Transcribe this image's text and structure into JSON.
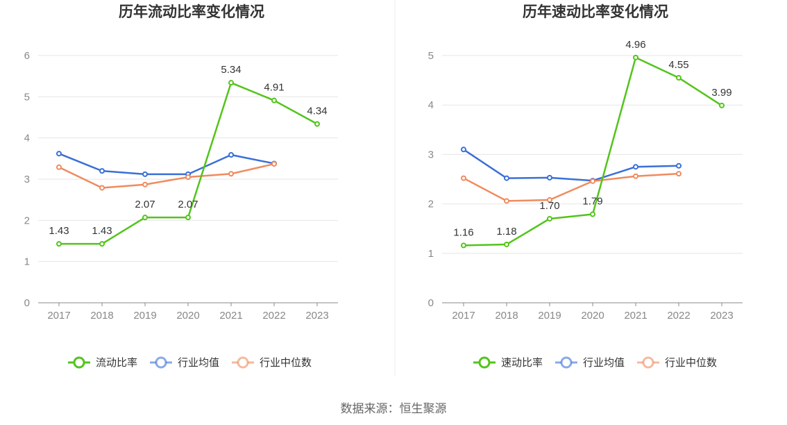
{
  "source": "数据来源：恒生聚源",
  "chart_data": [
    {
      "type": "line",
      "title": "历年流动比率变化情况",
      "categories": [
        "2017",
        "2018",
        "2019",
        "2020",
        "2021",
        "2022",
        "2023"
      ],
      "ylim": [
        0,
        6
      ],
      "yticks": [
        0,
        1,
        2,
        3,
        4,
        5,
        6
      ],
      "grid": true,
      "legend_position": "bottom",
      "series": [
        {
          "name": "流动比率",
          "color": "#52c41a",
          "values": [
            1.43,
            1.43,
            2.07,
            2.07,
            5.34,
            4.91,
            4.34
          ],
          "labels": [
            "1.43",
            "1.43",
            "2.07",
            "2.07",
            "5.34",
            "4.91",
            "4.34"
          ]
        },
        {
          "name": "行业均值",
          "color": "#3a6fd8",
          "values": [
            3.62,
            3.2,
            3.12,
            3.12,
            3.59,
            3.38,
            null
          ]
        },
        {
          "name": "行业中位数",
          "color": "#f08a5d",
          "values": [
            3.29,
            2.79,
            2.87,
            3.05,
            3.13,
            3.37,
            null
          ]
        }
      ]
    },
    {
      "type": "line",
      "title": "历年速动比率变化情况",
      "categories": [
        "2017",
        "2018",
        "2019",
        "2020",
        "2021",
        "2022",
        "2023"
      ],
      "ylim": [
        0,
        5
      ],
      "yticks": [
        0,
        1,
        2,
        3,
        4,
        5
      ],
      "grid": true,
      "legend_position": "bottom",
      "series": [
        {
          "name": "速动比率",
          "color": "#52c41a",
          "values": [
            1.16,
            1.18,
            1.7,
            1.79,
            4.96,
            4.55,
            3.99
          ],
          "labels": [
            "1.16",
            "1.18",
            "1.70",
            "1.79",
            "4.96",
            "4.55",
            "3.99"
          ]
        },
        {
          "name": "行业均值",
          "color": "#3a6fd8",
          "values": [
            3.1,
            2.52,
            2.53,
            2.47,
            2.75,
            2.77,
            null
          ]
        },
        {
          "name": "行业中位数",
          "color": "#f08a5d",
          "values": [
            2.52,
            2.06,
            2.08,
            2.46,
            2.56,
            2.61,
            null
          ]
        }
      ]
    }
  ]
}
